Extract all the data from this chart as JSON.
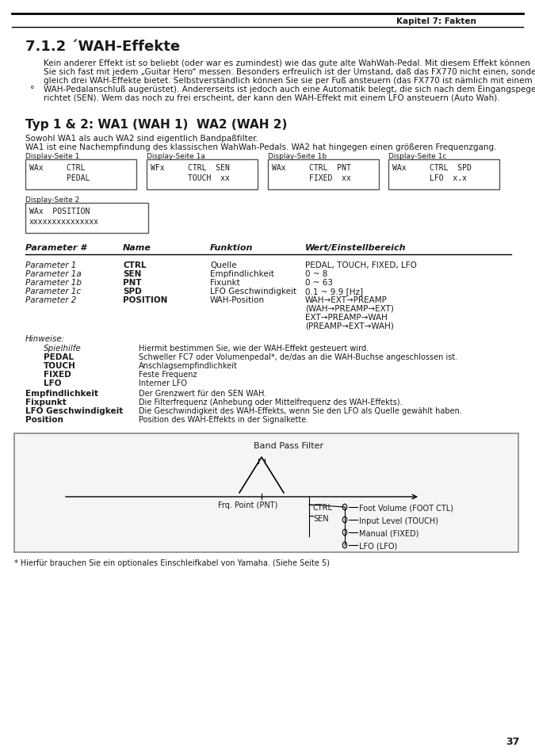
{
  "page_header_right": "Kapitel 7: Fakten",
  "section_title": "7.1.2 ´WAH-Effekte",
  "intro_text": "Kein anderer Effekt ist so beliebt (oder war es zumindest) wie das gute alte WahWah-Pedal. Mit diesem Effekt können\nSie sich fast mit jedem „Guitar Hero“ messen. Besonders erfreulich ist der Umstand, daß das FX770 nicht einen, sondern\ngleich drei WAH-Effekte bietet. Selbstverständlich können Sie sie per Fuß ansteuern (das FX770 ist nämlich mit einem\nWAH-Pedalanschluß augerüstet). Andererseits ist jedoch auch eine Automatik belegt, die sich nach dem Eingangspegel\nrichtet (SEN). Wem das noch zu frei erscheint, der kann den WAH-Effekt mit einem LFO ansteuern (Auto Wah).",
  "bullet_marker": "°",
  "subsection_title": "Typ 1 & 2: WA1 (WAH 1)  WA2 (WAH 2)",
  "sub_intro_line1": "Sowohl WA1 als auch WA2 sind eigentlich Bandpaßfilter.",
  "sub_intro_line2": "WA1 ist eine Nachempfindung des klassischen WahWah-Pedals. WA2 hat hingegen einen größeren Frequenzgang.",
  "display_labels": [
    "Display-Seite 1",
    "Display-Seite 1a",
    "Display-Seite 1b",
    "Display-Seite 1c"
  ],
  "display_contents": [
    [
      "WAx     CTRL",
      "        PEDAL"
    ],
    [
      "WFx     CTRL  SEN",
      "        TOUCH  xx"
    ],
    [
      "WAx     CTRL  PNT",
      "        FIXED  xx"
    ],
    [
      "WAx     CTRL  SPD",
      "        LFO  x.x"
    ]
  ],
  "display2_label": "Display-Seite 2",
  "display2_content": [
    "WAx  POSITION",
    "xxxxxxxxxxxxxxx"
  ],
  "table_headers": [
    "Parameter #",
    "Name",
    "Funktion",
    "Wert/Einstellbereich"
  ],
  "table_rows": [
    [
      "Parameter 1",
      "CTRL",
      "Quelle",
      "PEDAL, TOUCH, FIXED, LFO"
    ],
    [
      "Parameter 1a",
      "SEN",
      "Empfindlichkeit",
      "0 ~ 8"
    ],
    [
      "Parameter 1b",
      "PNT",
      "Fixunkt",
      "0 ~ 63"
    ],
    [
      "Parameter 1c",
      "SPD",
      "LFO Geschwindigkeit",
      "0.1 ~ 9.9 [Hz]"
    ],
    [
      "Parameter 2",
      "POSITION",
      "WAH-Position",
      "WAH→EXT→PREAMP\n(WAH→PREAMP→EXT)\nEXT→PREAMP→WAH\n(PREAMP→EXT→WAH)"
    ]
  ],
  "hinweise_title": "Hinweise:",
  "hinweise_rows": [
    [
      "Spielhilfe",
      "Hiermit bestimmen Sie, wie der WAH-Effekt gesteuert wird."
    ],
    [
      "PEDAL",
      "Schweller FC7 oder Volumenpedal*, de/das an die WAH-Buchse angeschlossen ist."
    ],
    [
      "TOUCH",
      "Anschlagsempfindlichkeit"
    ],
    [
      "FIXED",
      "Feste Frequenz"
    ],
    [
      "LFO",
      "Interner LFO"
    ]
  ],
  "hinweise_extra": [
    [
      "Empfindlichkeit",
      "Der Grenzwert für den SEN WAH."
    ],
    [
      "Fixpunkt",
      "Die Filterfrequenz (Anhebung oder Mittelfrequenz des WAH-Effekts)."
    ],
    [
      "LFO Geschwindigkeit",
      "Die Geschwindigkeit des WAH-Effekts, wenn Sie den LFO als Quelle gewählt haben."
    ],
    [
      "Position",
      "Position des WAH-Effekts in der Signalkette."
    ]
  ],
  "footnote": "* Hierfür brauchen Sie ein optionales Einschleifkabel von Yamaha. (Siehe Seite 5)",
  "page_number": "37",
  "diagram_title": "Band Pass Filter",
  "diagram_labels": [
    "Frq. Point (PNT)",
    "CTRL",
    "SEN",
    "Foot Volume (FOOT CTL)",
    "Input Level (TOUCH)",
    "Manual (FIXED)",
    "LFO (LFO)"
  ],
  "bg_color": "#ffffff",
  "text_color": "#1a1a1a",
  "line_color": "#000000",
  "box_border_color": "#555555",
  "header_line_color": "#000000"
}
